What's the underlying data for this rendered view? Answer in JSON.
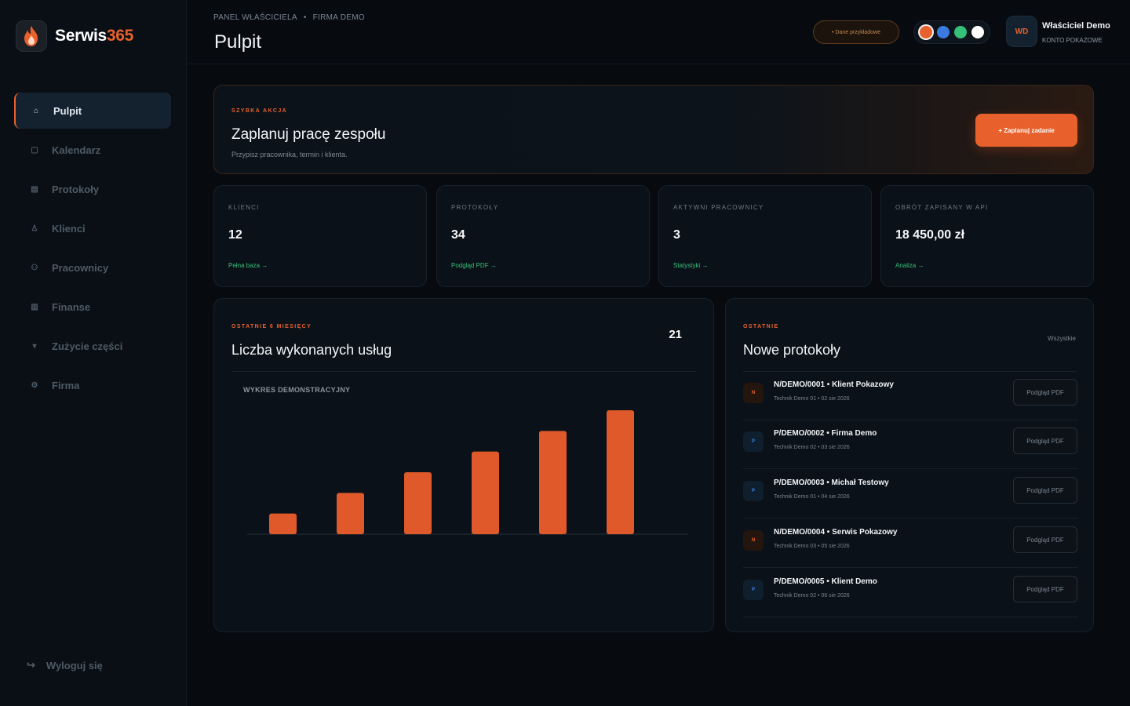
{
  "brand": {
    "name_primary": "Serwis",
    "name_accent": "365",
    "logo_icon": "flame-icon"
  },
  "sidebar": {
    "items": [
      {
        "label": "Pulpit",
        "icon": "home-icon",
        "active": true
      },
      {
        "label": "Kalendarz",
        "icon": "calendar-icon",
        "active": false
      },
      {
        "label": "Protokoły",
        "icon": "document-icon",
        "active": false
      },
      {
        "label": "Klienci",
        "icon": "user-icon",
        "active": false
      },
      {
        "label": "Pracownicy",
        "icon": "team-icon",
        "active": false
      },
      {
        "label": "Finanse",
        "icon": "finance-icon",
        "active": false
      },
      {
        "label": "Zużycie części",
        "icon": "parts-icon",
        "active": false
      },
      {
        "label": "Firma",
        "icon": "gear-icon",
        "active": false
      }
    ],
    "logout_label": "Wyloguj się"
  },
  "header": {
    "breadcrumb_1": "PANEL WŁAŚCICIELA",
    "breadcrumb_sep": "•",
    "breadcrumb_2": "FIRMA DEMO",
    "title": "Pulpit",
    "demo_badge": "• Dane przykładowe",
    "theme_colors": [
      "#e8612c",
      "#3b7be0",
      "#35c07a",
      "#ffffff"
    ],
    "avatar_initials": "WD",
    "user_name": "Właściciel Demo",
    "user_role": "KONTO POKAZOWE"
  },
  "quick_action": {
    "eyebrow": "SZYBKA AKCJA",
    "title": "Zaplanuj pracę zespołu",
    "subtitle": "Przypisz pracownika, termin i klienta.",
    "button_label": "+ Zaplanuj zadanie"
  },
  "stats": [
    {
      "label": "KLIENCI",
      "value": "12",
      "link": "Pełna baza →"
    },
    {
      "label": "PROTOKOŁY",
      "value": "34",
      "link": "Podgląd PDF →"
    },
    {
      "label": "AKTYWNI PRACOWNICY",
      "value": "3",
      "link": "Statystyki →"
    },
    {
      "label": "OBRÓT ZAPISANY W API",
      "value": "18 450,00 zł",
      "link": "Analiza →"
    }
  ],
  "chart_panel": {
    "eyebrow": "OSTATNIE 6 MIESIĘCY",
    "title": "Liczba wykonanych usług",
    "total": "21",
    "caption": "WYKRES DEMONSTRACYJNY"
  },
  "chart_data": {
    "type": "bar",
    "categories": [
      "",
      "",
      "",
      "",
      "",
      ""
    ],
    "values": [
      1,
      2,
      3,
      4,
      5,
      6
    ],
    "title": "Liczba wykonanych usług",
    "xlabel": "",
    "ylabel": "",
    "ylim": [
      0,
      6
    ],
    "grid": false,
    "bar_color": "#e0592a"
  },
  "protocols_panel": {
    "eyebrow": "OSTATNIE",
    "title": "Nowe protokoły",
    "all_link": "Wszystkie",
    "rows": [
      {
        "badge": "N",
        "type": "n",
        "title": "N/DEMO/0001 • Klient Pokazowy",
        "sub": "Technik Demo 01 • 02 sie 2026",
        "button": "Podgląd PDF"
      },
      {
        "badge": "P",
        "type": "p",
        "title": "P/DEMO/0002 • Firma Demo",
        "sub": "Technik Demo 02 • 03 sie 2026",
        "button": "Podgląd PDF"
      },
      {
        "badge": "P",
        "type": "p",
        "title": "P/DEMO/0003 • Michał Testowy",
        "sub": "Technik Demo 01 • 04 sie 2026",
        "button": "Podgląd PDF"
      },
      {
        "badge": "N",
        "type": "n",
        "title": "N/DEMO/0004 • Serwis Pokazowy",
        "sub": "Technik Demo 03 • 05 sie 2026",
        "button": "Podgląd PDF"
      },
      {
        "badge": "P",
        "type": "p",
        "title": "P/DEMO/0005 • Klient Demo",
        "sub": "Technik Demo 02 • 06 sie 2026",
        "button": "Podgląd PDF"
      }
    ]
  }
}
